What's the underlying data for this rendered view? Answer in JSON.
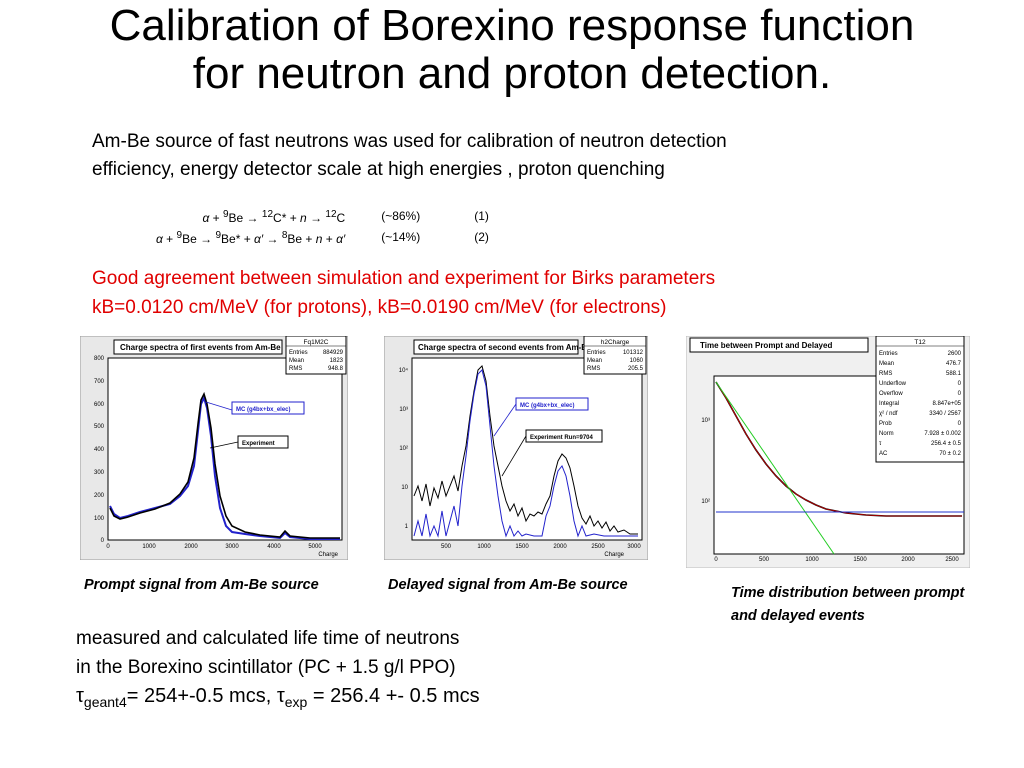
{
  "title": {
    "line1": "Calibration  of Borexino response function",
    "line2": "for neutron and proton  detection."
  },
  "intro": {
    "line1": "Am-Be source of fast neutrons  was used for calibration of neutron detection",
    "line2": "efficiency, energy detector scale at high energies , proton quenching"
  },
  "reactions": [
    {
      "pct": "(~86%)",
      "num": "(1)"
    },
    {
      "pct": "(~14%)",
      "num": "(2)"
    }
  ],
  "agreement": {
    "line1": "Good agreement between simulation and experiment for Birks parameters",
    "line2": "kB=0.0120 cm/MeV (for protons), kB=0.0190 cm/MeV (for electrons)"
  },
  "plot1": {
    "caption": "Prompt signal from Am-Be source",
    "title": "Charge spectra of first events from Am-Be",
    "stats": {
      "name": "Fq1M2C",
      "rows": [
        [
          "Entries",
          "884929"
        ],
        [
          "Mean",
          "1823"
        ],
        [
          "RMS",
          "948.8"
        ]
      ]
    },
    "legend_mc": "MC (g4bx+bx_elec)",
    "legend_exp": "Experiment",
    "xlabel": "Charge",
    "xticks": [
      "0",
      "1000",
      "2000",
      "3000",
      "4000",
      "5000"
    ],
    "yticks": [
      "0",
      "100",
      "200",
      "300",
      "400",
      "500",
      "600",
      "700",
      "800"
    ],
    "colors": {
      "mc": "#2222cc",
      "exp": "#000000"
    }
  },
  "plot2": {
    "caption": "Delayed signal from Am-Be source",
    "title": "Charge spectra of second events from Am-Be",
    "stats": {
      "name": "h2Charge",
      "rows": [
        [
          "Entries",
          "101312"
        ],
        [
          "Mean",
          "1060"
        ],
        [
          "RMS",
          "205.5"
        ]
      ]
    },
    "legend_mc": "MC (g4bx+bx_elec)",
    "legend_exp": "Experiment Run=9704",
    "xlabel": "Charge",
    "xticks": [
      "500",
      "1000",
      "1500",
      "2000",
      "2500",
      "3000"
    ],
    "yticks": [
      "1",
      "10",
      "10²",
      "10³",
      "10⁴"
    ]
  },
  "plot3": {
    "caption_line1": "Time distribution between prompt",
    "caption_line2": "and delayed events",
    "title": "Time between Prompt and Delayed",
    "stats": {
      "name": "T12",
      "rows": [
        [
          "Entries",
          "2600"
        ],
        [
          "Mean",
          "476.7"
        ],
        [
          "RMS",
          "588.1"
        ],
        [
          "Underflow",
          "0"
        ],
        [
          "Overflow",
          "0"
        ],
        [
          "Integral",
          "8.847e+05"
        ],
        [
          "χ² / ndf",
          "3340 / 2567"
        ],
        [
          "Prob",
          "0"
        ],
        [
          "Norm",
          "7.928 ± 0.002"
        ],
        [
          "τ",
          "256.4 ± 0.5"
        ],
        [
          "AC",
          "70 ± 0.2"
        ]
      ]
    },
    "xticks": [
      "0",
      "500",
      "1000",
      "1500",
      "2000",
      "2500"
    ],
    "yticks": [
      "10²",
      "10³"
    ],
    "colors": {
      "fit": "#cc0000",
      "expo": "#22cc22",
      "const": "#2233cc"
    }
  },
  "bottom": {
    "line1": "measured and calculated life time of neutrons",
    "line2": "in the Borexino scintillator (PC + 1.5 g/l PPO)",
    "tau_symbol": "τ",
    "tau1_sub": "geant4",
    "tau1_value": "= 254+-0.5 mcs, ",
    "tau2_sub": "exp",
    "tau2_value": " = 256.4 +- 0.5 mcs"
  }
}
